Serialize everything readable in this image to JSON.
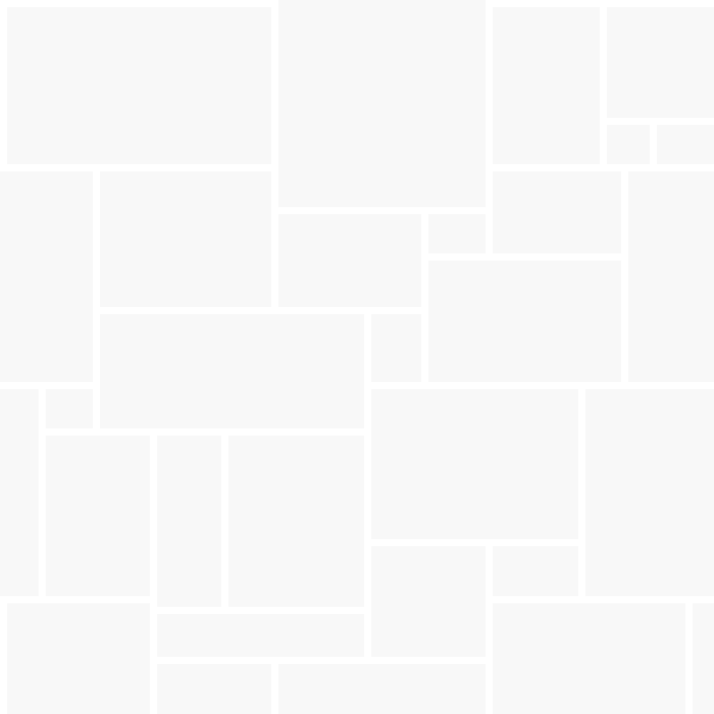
{
  "page": {
    "background_color": "#ffffff"
  },
  "tiles": {
    "fill_color": "#f8f8f8"
  }
}
